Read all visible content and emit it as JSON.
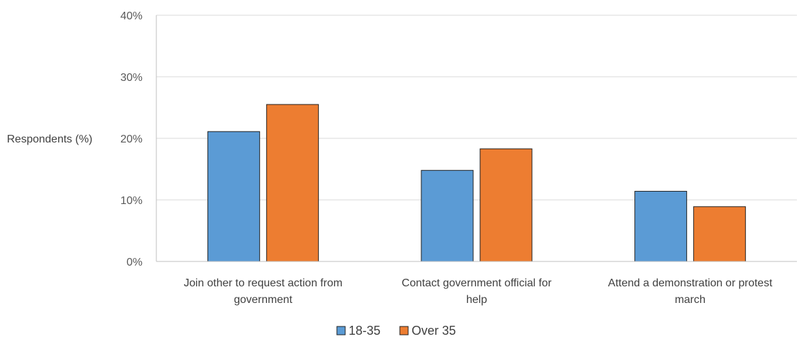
{
  "chart_data": {
    "type": "bar",
    "ylabel": "Respondents (%)",
    "ylim": [
      0,
      40
    ],
    "yticks": [
      0,
      10,
      20,
      30,
      40
    ],
    "ytick_labels": [
      "0%",
      "10%",
      "20%",
      "30%",
      "40%"
    ],
    "categories": [
      [
        "Join other to request action from",
        "government"
      ],
      [
        "Contact government official for",
        "help"
      ],
      [
        "Attend a demonstration or protest",
        "march"
      ]
    ],
    "series": [
      {
        "name": "18-35",
        "color": "#5b9bd5",
        "values": [
          21.1,
          14.8,
          11.4
        ]
      },
      {
        "name": "Over 35",
        "color": "#ed7d31",
        "values": [
          25.5,
          18.3,
          8.9
        ]
      }
    ],
    "grid": true,
    "legend_position": "bottom-center"
  }
}
